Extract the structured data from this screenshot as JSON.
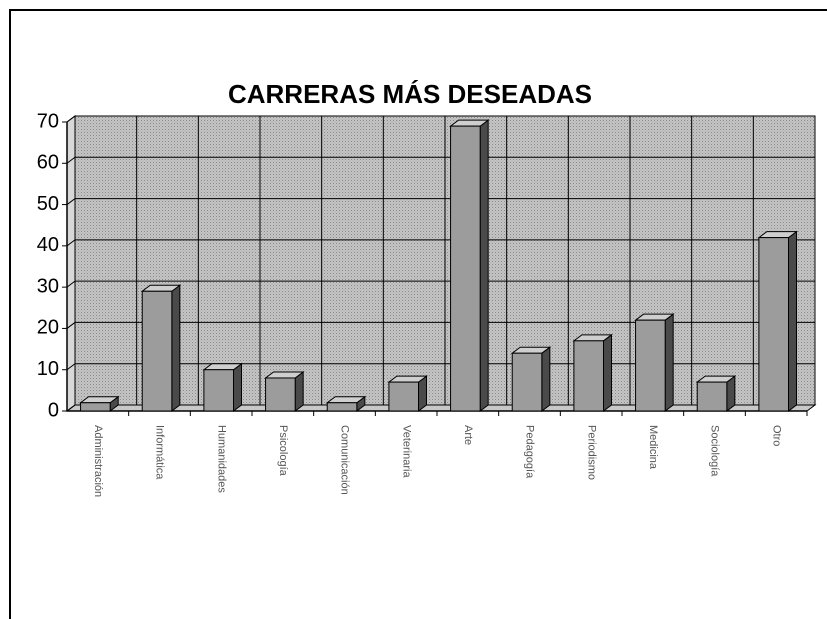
{
  "chart_data": {
    "type": "bar3d",
    "title": "CARRERAS MÁS DESEADAS",
    "categories": [
      "Administración",
      "Informática",
      "Humanidades",
      "Psicología",
      "Comunicación",
      "Veterinaria",
      "Arte",
      "Pedagogía",
      "Periodismo",
      "Medicina",
      "Sociología",
      "Otro"
    ],
    "values": [
      2,
      29,
      10,
      8,
      2,
      7,
      69,
      14,
      17,
      22,
      7,
      42
    ],
    "color": "#9c9c9c",
    "ylim": [
      0,
      70
    ],
    "yticks": [
      0,
      10,
      20,
      30,
      40,
      50,
      60,
      70
    ],
    "grid": true
  }
}
